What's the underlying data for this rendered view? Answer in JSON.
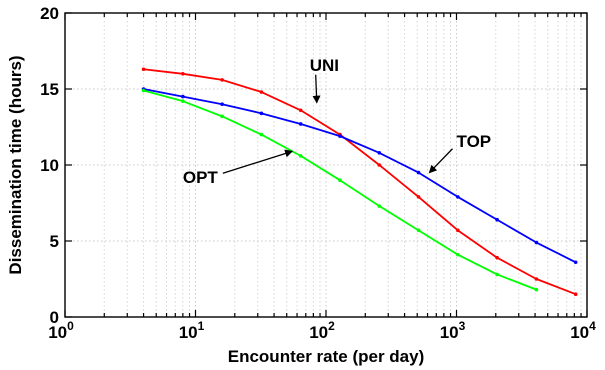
{
  "chart_data": {
    "type": "line",
    "xlabel": "Encounter rate (per day)",
    "ylabel": "Dissemination time (hours)",
    "xscale": "log",
    "xlim": [
      1,
      10000
    ],
    "ylim": [
      0,
      20
    ],
    "grid": true,
    "x_ticks": [
      {
        "base": "10",
        "exp": "0"
      },
      {
        "base": "10",
        "exp": "1"
      },
      {
        "base": "10",
        "exp": "2"
      },
      {
        "base": "10",
        "exp": "3"
      },
      {
        "base": "10",
        "exp": "4"
      }
    ],
    "y_ticks": [
      "0",
      "5",
      "10",
      "15",
      "20"
    ],
    "series": [
      {
        "name": "UNI",
        "color": "#ff0000",
        "x": [
          4,
          8,
          16,
          32,
          64,
          128,
          256,
          512,
          1024,
          2048,
          4096,
          8192
        ],
        "y": [
          16.3,
          16.0,
          15.6,
          14.8,
          13.6,
          12.0,
          10.0,
          7.9,
          5.7,
          3.9,
          2.5,
          1.5
        ]
      },
      {
        "name": "TOP",
        "color": "#0000ff",
        "x": [
          4,
          8,
          16,
          32,
          64,
          128,
          256,
          512,
          1024,
          2048,
          4096,
          8192
        ],
        "y": [
          15.0,
          14.5,
          14.0,
          13.4,
          12.7,
          11.9,
          10.8,
          9.5,
          7.9,
          6.4,
          4.9,
          3.6
        ]
      },
      {
        "name": "OPT",
        "color": "#00ff00",
        "x": [
          4,
          8,
          16,
          32,
          64,
          128,
          256,
          512,
          1024,
          2048,
          4096
        ],
        "y": [
          14.9,
          14.2,
          13.2,
          12.0,
          10.6,
          9.0,
          7.3,
          5.7,
          4.1,
          2.8,
          1.8
        ]
      }
    ],
    "annotations": [
      {
        "label": "UNI",
        "text_x": 75,
        "text_y": 16.2,
        "arrow_to_x": 85,
        "arrow_to_y": 14.1
      },
      {
        "label": "TOP",
        "text_x": 1000,
        "text_y": 11.2,
        "arrow_to_x": 620,
        "arrow_to_y": 9.5
      },
      {
        "label": "OPT",
        "text_x": 8,
        "text_y": 8.8,
        "arrow_to_x": 55,
        "arrow_to_y": 10.9
      }
    ]
  }
}
